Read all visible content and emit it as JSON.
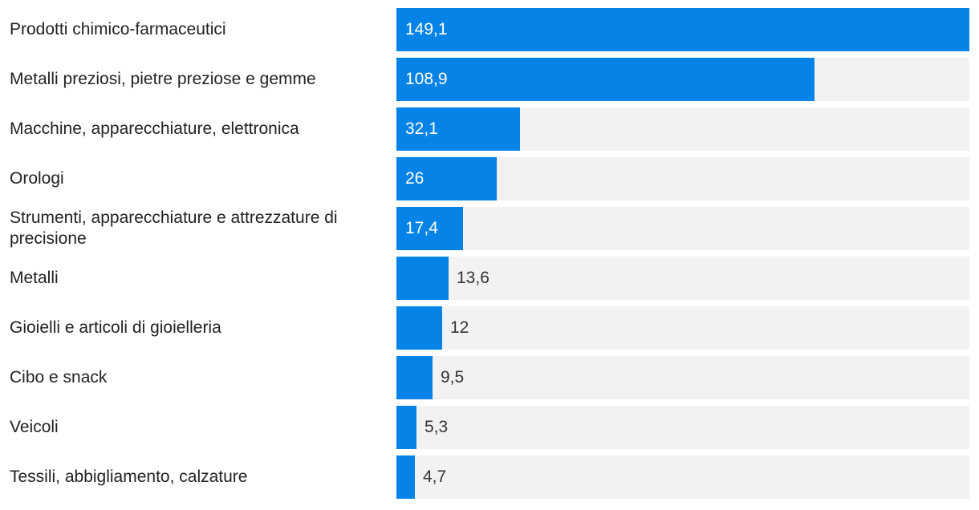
{
  "chart_data": {
    "type": "bar",
    "orientation": "horizontal",
    "categories": [
      "Prodotti chimico-farmaceutici",
      "Metalli preziosi, pietre preziose e gemme",
      "Macchine, apparecchiature, elettronica",
      "Orologi",
      "Strumenti, apparecchiature e attrezzature di precisione",
      "Metalli",
      "Gioielli e articoli di gioielleria",
      "Cibo e snack",
      "Veicoli",
      "Tessili, abbigliamento, calzature"
    ],
    "values": [
      149.1,
      108.9,
      32.1,
      26,
      17.4,
      13.6,
      12,
      9.5,
      5.3,
      4.7
    ],
    "value_labels": [
      "149,1",
      "108,9",
      "32,1",
      "26",
      "17,4",
      "13,6",
      "12",
      "9,5",
      "5,3",
      "4,7"
    ],
    "xlim": [
      0,
      149.1
    ],
    "grid": false,
    "colors": {
      "bar": "#0583e6",
      "track": "#f2f2f2",
      "label_inside": "#ffffff",
      "label_outside": "#333333",
      "category_text": "#222222"
    }
  }
}
